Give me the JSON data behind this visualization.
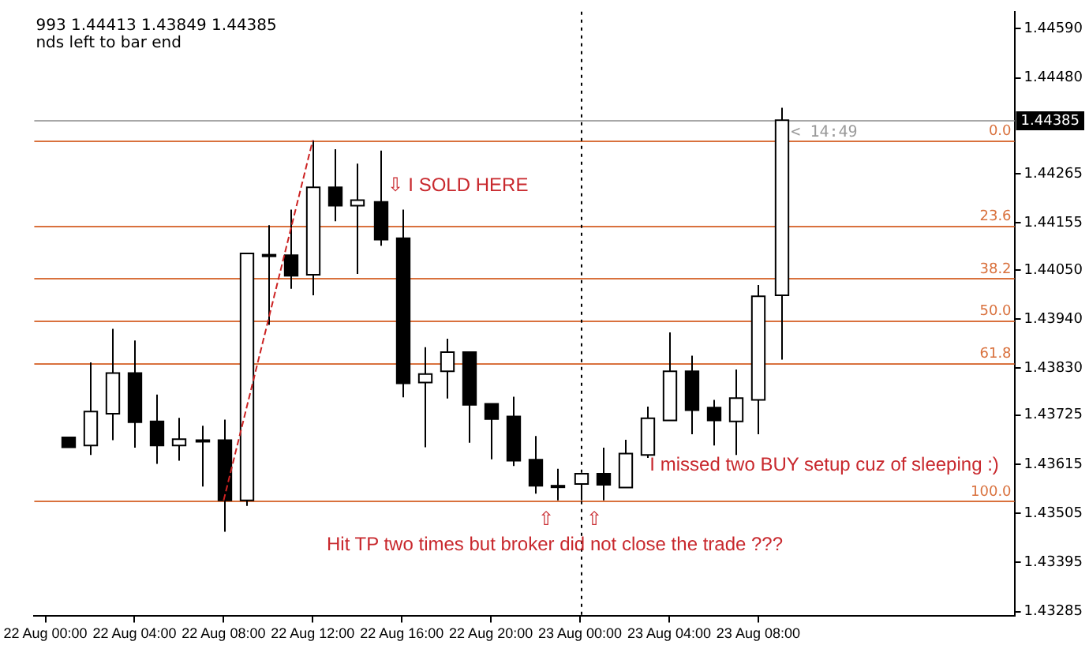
{
  "chart_data": {
    "type": "candlestick",
    "categories": [
      "22 Aug 00:00",
      null,
      null,
      null,
      "22 Aug 04:00",
      null,
      null,
      null,
      "22 Aug 08:00",
      null,
      null,
      null,
      "22 Aug 12:00",
      null,
      null,
      null,
      "22 Aug 16:00",
      null,
      null,
      null,
      "22 Aug 20:00",
      null,
      null,
      null,
      "23 Aug 00:00",
      null,
      null,
      null,
      "23 Aug 04:00",
      null,
      null,
      null,
      "23 Aug 08:00",
      null,
      null,
      null,
      null,
      null,
      null,
      null,
      null,
      null,
      null,
      null
    ],
    "ohlc": [
      null,
      [
        1.43675,
        1.43675,
        1.43653,
        1.43653
      ],
      [
        1.43657,
        1.43843,
        1.43636,
        1.43733
      ],
      [
        1.43728,
        1.43918,
        1.43669,
        1.43819
      ],
      [
        1.43819,
        1.43892,
        1.43652,
        1.43709
      ],
      [
        1.43711,
        1.43771,
        1.43616,
        1.43657
      ],
      [
        1.43657,
        1.43719,
        1.43623,
        1.43671
      ],
      [
        1.43669,
        1.43701,
        1.43565,
        1.43669
      ],
      [
        1.43669,
        1.43715,
        1.43464,
        1.43534
      ],
      [
        1.43534,
        1.44087,
        1.43522,
        1.44087
      ],
      [
        1.44084,
        1.4415,
        1.43927,
        1.44084
      ],
      [
        1.44083,
        1.44185,
        1.44008,
        1.44037
      ],
      [
        1.44039,
        1.4434,
        1.43993,
        1.44235
      ],
      [
        1.44235,
        1.4432,
        1.44159,
        1.44194
      ],
      [
        1.44194,
        1.44288,
        1.44041,
        1.44206
      ],
      [
        1.44202,
        1.44317,
        1.44104,
        1.44118
      ],
      [
        1.44121,
        1.44185,
        1.43765,
        1.43796
      ],
      [
        1.43798,
        1.43877,
        1.43653,
        1.43817
      ],
      [
        1.43823,
        1.43896,
        1.43762,
        1.43866
      ],
      [
        1.43866,
        1.43866,
        1.43663,
        1.43748
      ],
      [
        1.4375,
        1.4375,
        1.43626,
        1.43716
      ],
      [
        1.43722,
        1.43766,
        1.43611,
        1.43623
      ],
      [
        1.43625,
        1.43678,
        1.43549,
        1.43567
      ],
      [
        1.43567,
        1.43605,
        1.43534,
        1.43567
      ],
      [
        1.43571,
        1.43594,
        1.43534,
        1.43594
      ],
      [
        1.43594,
        1.43652,
        1.43534,
        1.43569
      ],
      [
        1.43563,
        1.4367,
        1.43563,
        1.43639
      ],
      [
        1.43636,
        1.43744,
        1.43629,
        1.43718
      ],
      [
        1.43713,
        1.4391,
        1.43713,
        1.43823
      ],
      [
        1.43823,
        1.43858,
        1.43682,
        1.43736
      ],
      [
        1.43742,
        1.43759,
        1.43657,
        1.43713
      ],
      [
        1.43711,
        1.43827,
        1.43636,
        1.43763
      ],
      [
        1.43759,
        1.44016,
        1.43682,
        1.43991
      ],
      [
        1.43993,
        1.44413,
        1.43849,
        1.44385
      ],
      null,
      null,
      null,
      null,
      null,
      null,
      null,
      null,
      null,
      null
    ],
    "series": [
      {
        "type": "line",
        "values": [
          null,
          null,
          null,
          null,
          null,
          null,
          null,
          null,
          1.43534,
          null,
          null,
          null,
          1.4434,
          null,
          null,
          null,
          null,
          null,
          null,
          null,
          null,
          null,
          null,
          null,
          null,
          null,
          null,
          null,
          null,
          null,
          null,
          null,
          null,
          null,
          null,
          null,
          null,
          null,
          null,
          null,
          null,
          null,
          null,
          null
        ],
        "color": "#cc2222",
        "line_style": "dashed"
      }
    ],
    "ylim": [
      1.43275,
      1.44628
    ],
    "yticks": [
      {
        "value": 1.43285,
        "label": "1.43285"
      },
      {
        "value": 1.43395,
        "label": "1.43395"
      },
      {
        "value": 1.43505,
        "label": "1.43505"
      },
      {
        "value": 1.43615,
        "label": "1.43615"
      },
      {
        "value": 1.43725,
        "label": "1.43725"
      },
      {
        "value": 1.4383,
        "label": "1.43830"
      },
      {
        "value": 1.4394,
        "label": "1.43940"
      },
      {
        "value": 1.4405,
        "label": "1.44050"
      },
      {
        "value": 1.44155,
        "label": "1.44155"
      },
      {
        "value": 1.44265,
        "label": "1.44265"
      },
      {
        "value": 1.4448,
        "label": "1.44480"
      },
      {
        "value": 1.4459,
        "label": "1.44590"
      }
    ],
    "ref_lines": [
      {
        "axis": "y",
        "value": 1.4434,
        "color": "#d9713d"
      },
      {
        "axis": "y",
        "value": 1.4415,
        "color": "#d9713d"
      },
      {
        "axis": "y",
        "value": 1.44032,
        "color": "#d9713d"
      },
      {
        "axis": "y",
        "value": 1.43937,
        "color": "#d9713d"
      },
      {
        "axis": "y",
        "value": 1.43842,
        "color": "#d9713d"
      },
      {
        "axis": "y",
        "value": 1.43534,
        "color": "#d9713d"
      },
      {
        "axis": "y",
        "value": 1.44385,
        "label": "1.44385",
        "color": "#a8a8a8"
      },
      {
        "axis": "x",
        "value": "23 Aug 00:00",
        "color": "#000000",
        "line_style": "dotted"
      }
    ],
    "annotations": [
      "993 1.44413 1.43849 1.44385",
      "nds left to bar end",
      "< 14:49",
      "⇩ I SOLD HERE",
      "⇧",
      "⇧",
      "Hit TP two times but broker did not close the trade ???",
      "I missed two BUY setup cuz of sleeping :)",
      {
        "text": "0.0",
        "y": 1.4434
      },
      {
        "text": "23.6",
        "y": 1.4415
      },
      {
        "text": "38.2",
        "y": 1.44032
      },
      {
        "text": "50.0",
        "y": 1.43937
      },
      {
        "text": "61.8",
        "y": 1.43842
      },
      {
        "text": "100.0",
        "y": 1.43534
      }
    ],
    "grid": false,
    "legend": false
  }
}
